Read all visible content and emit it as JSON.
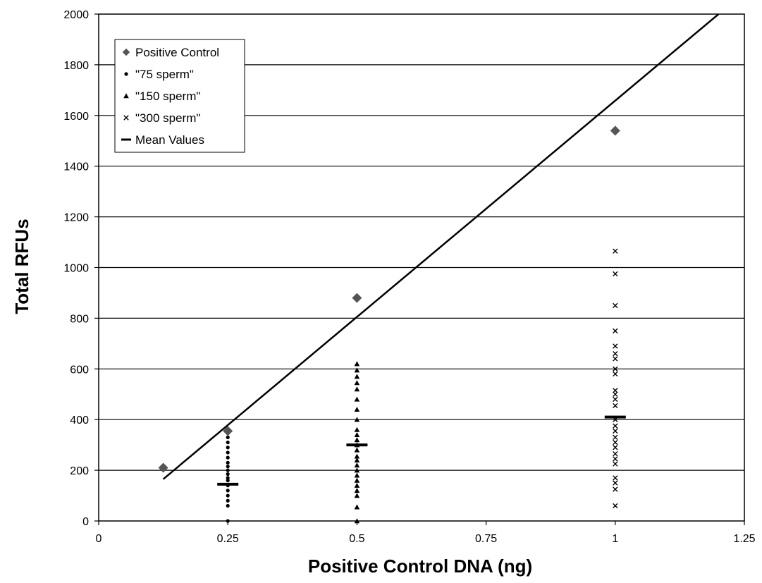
{
  "chart_data": {
    "type": "scatter",
    "title": "",
    "xlabel": "Positive Control DNA (ng)",
    "ylabel": "Total RFUs",
    "xlim": [
      0,
      1.25
    ],
    "ylim": [
      0,
      2000
    ],
    "xticks": [
      "0",
      "0.25",
      "0.5",
      "0.75",
      "1",
      "1.25"
    ],
    "yticks": [
      "0",
      "200",
      "400",
      "600",
      "800",
      "1000",
      "1200",
      "1400",
      "1600",
      "1800",
      "2000"
    ],
    "grid": "horizontal",
    "legend_position": "top-left",
    "series": [
      {
        "name": "Positive Control",
        "marker": "diamond",
        "color": "#555555",
        "points": [
          [
            0.125,
            210
          ],
          [
            0.25,
            355
          ],
          [
            0.5,
            880
          ],
          [
            1.0,
            1540
          ]
        ]
      },
      {
        "name": "\"75 sperm\"",
        "marker": "circle",
        "color": "#000000",
        "points": [
          [
            0.25,
            0
          ],
          [
            0.25,
            60
          ],
          [
            0.25,
            80
          ],
          [
            0.25,
            100
          ],
          [
            0.25,
            120
          ],
          [
            0.25,
            140
          ],
          [
            0.25,
            160
          ],
          [
            0.25,
            170
          ],
          [
            0.25,
            185
          ],
          [
            0.25,
            200
          ],
          [
            0.25,
            215
          ],
          [
            0.25,
            230
          ],
          [
            0.25,
            250
          ],
          [
            0.25,
            270
          ],
          [
            0.25,
            290
          ],
          [
            0.25,
            310
          ],
          [
            0.25,
            330
          ],
          [
            0.25,
            350
          ]
        ]
      },
      {
        "name": "\"150 sperm\"",
        "marker": "triangle",
        "color": "#000000",
        "points": [
          [
            0.5,
            0
          ],
          [
            0.5,
            55
          ],
          [
            0.5,
            100
          ],
          [
            0.5,
            120
          ],
          [
            0.5,
            140
          ],
          [
            0.5,
            160
          ],
          [
            0.5,
            180
          ],
          [
            0.5,
            200
          ],
          [
            0.5,
            220
          ],
          [
            0.5,
            240
          ],
          [
            0.5,
            255
          ],
          [
            0.5,
            280
          ],
          [
            0.5,
            300
          ],
          [
            0.5,
            320
          ],
          [
            0.5,
            340
          ],
          [
            0.5,
            360
          ],
          [
            0.5,
            400
          ],
          [
            0.5,
            440
          ],
          [
            0.5,
            480
          ],
          [
            0.5,
            520
          ],
          [
            0.5,
            545
          ],
          [
            0.5,
            570
          ],
          [
            0.5,
            595
          ],
          [
            0.5,
            620
          ]
        ]
      },
      {
        "name": "\"300 sperm\"",
        "marker": "x",
        "color": "#000000",
        "points": [
          [
            1.0,
            60
          ],
          [
            1.0,
            125
          ],
          [
            1.0,
            150
          ],
          [
            1.0,
            170
          ],
          [
            1.0,
            225
          ],
          [
            1.0,
            245
          ],
          [
            1.0,
            265
          ],
          [
            1.0,
            290
          ],
          [
            1.0,
            310
          ],
          [
            1.0,
            330
          ],
          [
            1.0,
            355
          ],
          [
            1.0,
            375
          ],
          [
            1.0,
            400
          ],
          [
            1.0,
            455
          ],
          [
            1.0,
            480
          ],
          [
            1.0,
            500
          ],
          [
            1.0,
            515
          ],
          [
            1.0,
            580
          ],
          [
            1.0,
            600
          ],
          [
            1.0,
            640
          ],
          [
            1.0,
            660
          ],
          [
            1.0,
            690
          ],
          [
            1.0,
            750
          ],
          [
            1.0,
            850
          ],
          [
            1.0,
            975
          ],
          [
            1.0,
            1065
          ]
        ]
      },
      {
        "name": "Mean Values",
        "marker": "dash",
        "color": "#000000",
        "points": [
          [
            0.25,
            145
          ],
          [
            0.5,
            300
          ],
          [
            1.0,
            410
          ]
        ]
      }
    ],
    "trendline": {
      "series": "Positive Control",
      "points": [
        [
          0.125,
          165
        ],
        [
          1.2,
          2000
        ]
      ]
    }
  }
}
